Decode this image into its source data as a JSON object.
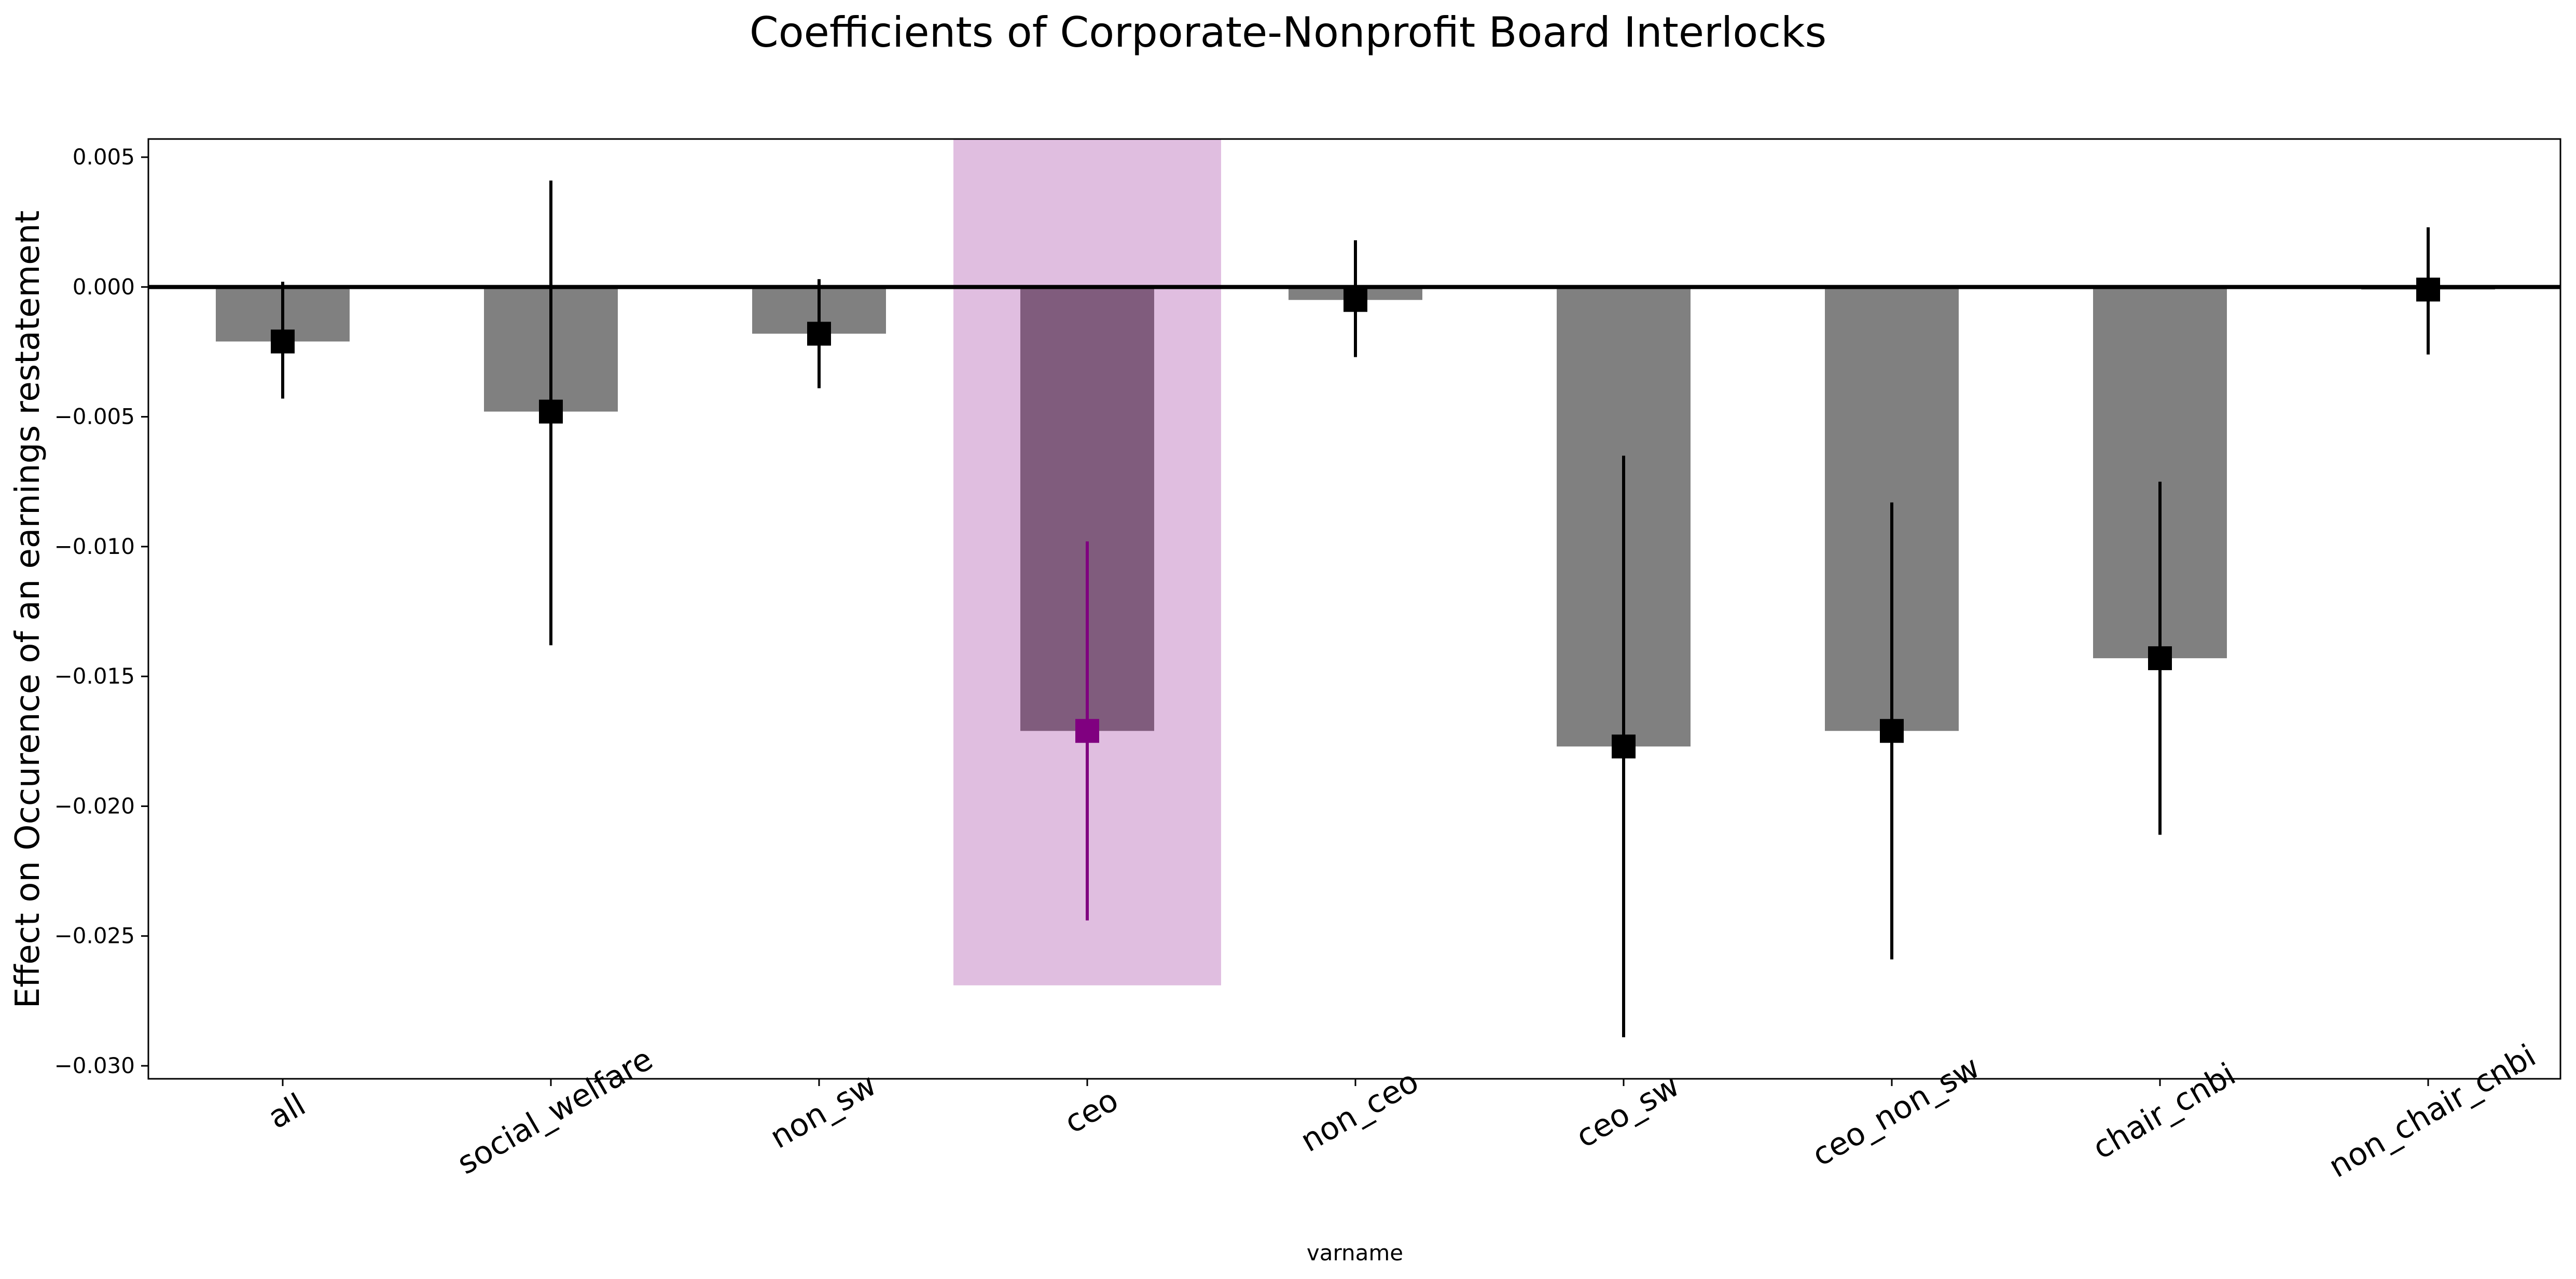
{
  "chart_data": {
    "type": "bar",
    "title": "Coefficients of Corporate-Nonprofit Board Interlocks",
    "xlabel": "varname",
    "ylabel": "Effect on Occurence of an earnings restatement",
    "ylim": [
      -0.0305,
      0.0057
    ],
    "yticks": [
      0.005,
      0.0,
      -0.005,
      -0.01,
      -0.015,
      -0.02,
      -0.025,
      -0.03
    ],
    "ytick_labels": [
      "0.005",
      "0.000",
      "−0.005",
      "−0.010",
      "−0.015",
      "−0.020",
      "−0.025",
      "−0.030"
    ],
    "categories": [
      "all",
      "social_welfare",
      "non_sw",
      "ceo",
      "non_ceo",
      "ceo_sw",
      "ceo_non_sw",
      "chair_cnbi",
      "non_chair_cnbi"
    ],
    "values": [
      -0.0021,
      -0.0048,
      -0.0018,
      -0.0171,
      -0.0005,
      -0.0177,
      -0.0171,
      -0.0143,
      -0.0001
    ],
    "ci_low": [
      -0.0043,
      -0.0138,
      -0.0039,
      -0.0244,
      -0.0027,
      -0.0289,
      -0.0259,
      -0.0211,
      -0.0026
    ],
    "ci_high": [
      0.0002,
      0.0041,
      0.0003,
      -0.0098,
      0.0018,
      -0.0065,
      -0.0083,
      -0.0075,
      0.0023
    ],
    "highlight_index": 3,
    "highlight_band_bottom": -0.0269,
    "zero_line": 0.0,
    "colors": {
      "bar": "#808080",
      "highlight_bar": "#805c7d",
      "highlight_band": "#e0bee0",
      "marker": "#000000",
      "highlight_marker": "#800080",
      "errorbar": "#000000",
      "highlight_errorbar": "#800080",
      "zero_line": "#000000"
    },
    "grid": false,
    "legend": "none"
  }
}
